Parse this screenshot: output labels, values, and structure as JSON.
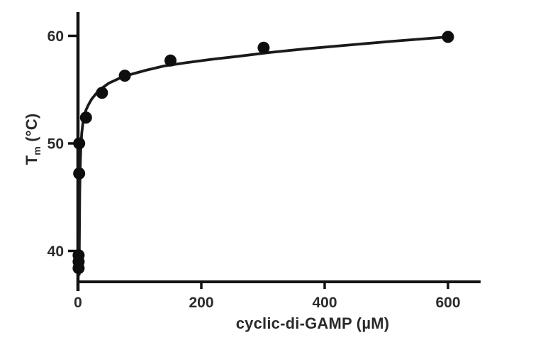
{
  "chart_data": {
    "type": "scatter",
    "title": "",
    "xlabel": "cyclic-di-GAMP (µM)",
    "ylabel_t": "T",
    "ylabel_sub": "m",
    "ylabel_units": " (°C)",
    "x_ticks": [
      0,
      200,
      400,
      600
    ],
    "y_ticks": [
      40,
      50,
      60
    ],
    "xlim": [
      0,
      653
    ],
    "ylim": [
      36.5,
      62
    ],
    "grid": false,
    "legend": "none",
    "marker_color": "#0e0e0e",
    "curve_color": "#1a1a1a",
    "axis_color": "#121212",
    "text_color": "#2b2b2b",
    "points": [
      {
        "x": 1,
        "y": 39.6
      },
      {
        "x": 1,
        "y": 39.0
      },
      {
        "x": 1,
        "y": 38.4
      },
      {
        "x": 2,
        "y": 47.2
      },
      {
        "x": 2,
        "y": 50.0
      },
      {
        "x": 13,
        "y": 52.4
      },
      {
        "x": 39,
        "y": 54.7
      },
      {
        "x": 76,
        "y": 56.3
      },
      {
        "x": 150,
        "y": 57.7
      },
      {
        "x": 301,
        "y": 58.9
      },
      {
        "x": 600,
        "y": 59.9
      }
    ],
    "fit_curve": [
      [
        2.0,
        37.8
      ],
      [
        2.2,
        40.5
      ],
      [
        2.5,
        43.2
      ],
      [
        2.9,
        45.5
      ],
      [
        3.4,
        47.3
      ],
      [
        4.1,
        48.8
      ],
      [
        5.0,
        50.0
      ],
      [
        6.2,
        51.0
      ],
      [
        7.8,
        51.8
      ],
      [
        10,
        52.5
      ],
      [
        13,
        53.1
      ],
      [
        17,
        53.6
      ],
      [
        22,
        54.1
      ],
      [
        29,
        54.6
      ],
      [
        38,
        55.1
      ],
      [
        50,
        55.6
      ],
      [
        65,
        56.0
      ],
      [
        85,
        56.4
      ],
      [
        110,
        56.8
      ],
      [
        140,
        57.2
      ],
      [
        175,
        57.5
      ],
      [
        215,
        57.8
      ],
      [
        260,
        58.1
      ],
      [
        310,
        58.45
      ],
      [
        370,
        58.8
      ],
      [
        440,
        59.15
      ],
      [
        510,
        59.5
      ],
      [
        600,
        59.9
      ]
    ]
  }
}
